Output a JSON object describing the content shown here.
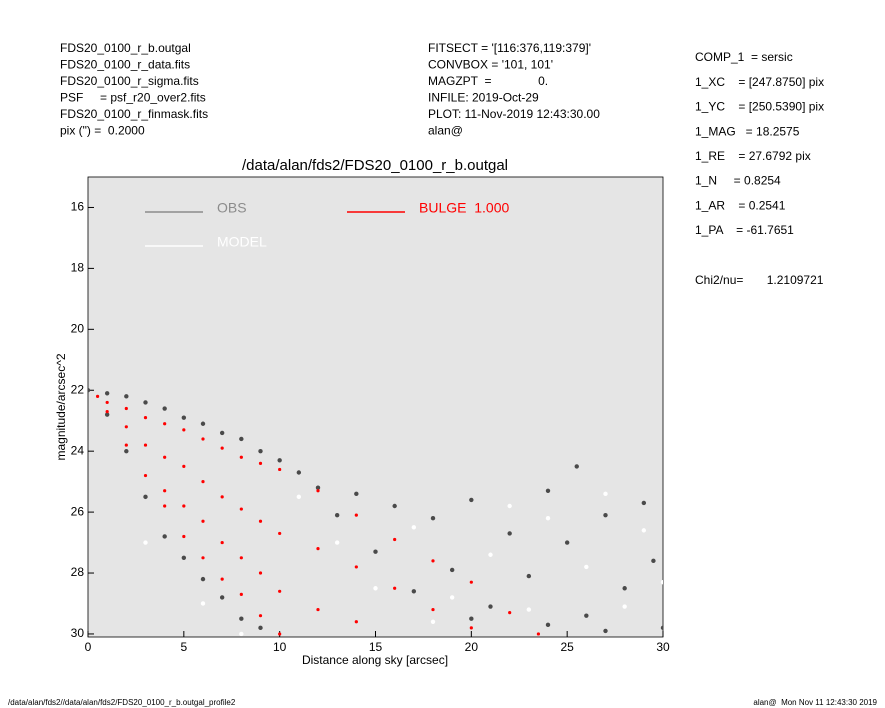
{
  "chart_data": {
    "type": "scatter",
    "title": "/data/alan/fds2/FDS20_0100_r_b.outgal",
    "x_label": "Distance along sky [arcsec]",
    "y_label": "magnitude/arcsec^2",
    "xlim": [
      0,
      30
    ],
    "ylim": [
      15,
      30.1
    ],
    "y_inverted": true,
    "xticks": [
      0,
      5,
      10,
      15,
      20,
      25,
      30
    ],
    "yticks": [
      16,
      18,
      20,
      22,
      24,
      26,
      28,
      30
    ],
    "background": "#e5e5e5",
    "header_left": [
      "FDS20_0100_r_b.outgal",
      "FDS20_0100_r_data.fits",
      "FDS20_0100_r_sigma.fits",
      "PSF     = psf_r20_over2.fits",
      "FDS20_0100_r_finmask.fits",
      "pix (\") =  0.2000"
    ],
    "header_middle": [
      "FITSECT = '[116:376,119:379]'",
      "CONVBOX = '101, 101'",
      "MAGZPT  =              0.",
      "INFILE: 2019-Oct-29",
      "PLOT: 11-Nov-2019 12:43:30.00",
      "alan@"
    ],
    "header_right": [
      "COMP_1  = sersic",
      "1_XC    = [247.8750] pix",
      "1_YC    = [250.5390] pix",
      "1_MAG   = 18.2575",
      "1_RE    = 27.6792 pix",
      "1_N     = 0.8254",
      "1_AR    = 0.2541",
      "1_PA    = -61.7651"
    ],
    "chi2": "Chi2/nu=       1.2109721",
    "footer_left": "/data/alan/fds2//data/alan/fds2/FDS20_0100_r_b.outgal_profile2",
    "footer_right": "alan@  Mon Nov 11 12:43:30 2019",
    "series": [
      {
        "name": "OBS",
        "color": "#4a4a4a",
        "legend_color": "#8c8c8c",
        "x": [
          0,
          1,
          2,
          3,
          4,
          5,
          6,
          7,
          8,
          9,
          10,
          11,
          1,
          2,
          3,
          4,
          5,
          6,
          7,
          8,
          9,
          12,
          13,
          14,
          15,
          16,
          17,
          18,
          19,
          20,
          21,
          22,
          23,
          24,
          25,
          25.5,
          26,
          27,
          28,
          29,
          29.5,
          30,
          20,
          24,
          27
        ],
        "values": [
          22,
          22.1,
          22.2,
          22.4,
          22.6,
          22.9,
          23.1,
          23.4,
          23.6,
          24,
          24.3,
          24.7,
          22.8,
          24,
          25.5,
          26.8,
          27.5,
          28.2,
          28.8,
          29.5,
          29.8,
          25.2,
          26.1,
          25.4,
          27.3,
          25.8,
          28.6,
          26.2,
          27.9,
          25.6,
          29.1,
          26.7,
          28.1,
          25.3,
          27,
          24.5,
          29.4,
          26.1,
          28.5,
          25.7,
          27.6,
          29.8,
          29.5,
          29.7,
          29.9
        ]
      },
      {
        "name": "MODEL",
        "color": "#ffffff",
        "legend_color": "#ffffff",
        "x": [
          11,
          13,
          15,
          17,
          19,
          21,
          23,
          24,
          26,
          27,
          28,
          29,
          30,
          22,
          18,
          3,
          6,
          8
        ],
        "values": [
          25.5,
          27,
          28.5,
          26.5,
          28.8,
          27.4,
          29.2,
          26.2,
          27.8,
          25.4,
          29.1,
          26.6,
          28.3,
          25.8,
          29.6,
          27,
          29,
          30
        ]
      },
      {
        "name": "BULGE  1.000",
        "color": "#ff0000",
        "legend_color": "#ff0000",
        "x": [
          0.5,
          1,
          1,
          2,
          2,
          2,
          3,
          3,
          3,
          4,
          4,
          4,
          4,
          5,
          5,
          5,
          5,
          6,
          6,
          6,
          6,
          7,
          7,
          7,
          7,
          8,
          8,
          8,
          8,
          9,
          9,
          9,
          9,
          10,
          10,
          10,
          10,
          12,
          12,
          12,
          14,
          14,
          14,
          16,
          16,
          18,
          18,
          20,
          20,
          22,
          23.5
        ],
        "values": [
          22.2,
          22.4,
          22.7,
          22.6,
          23.2,
          23.8,
          22.9,
          23.8,
          24.8,
          23.1,
          24.2,
          25.3,
          25.8,
          23.3,
          24.5,
          25.8,
          26.8,
          23.6,
          25,
          26.3,
          27.5,
          23.9,
          25.5,
          27,
          28.2,
          24.2,
          25.9,
          27.5,
          28.7,
          24.4,
          26.3,
          28,
          29.4,
          24.6,
          26.7,
          28.6,
          30,
          25.3,
          27.2,
          29.2,
          26.1,
          27.8,
          29.6,
          26.9,
          28.5,
          27.6,
          29.2,
          28.3,
          29.8,
          29.3,
          30
        ]
      }
    ]
  }
}
